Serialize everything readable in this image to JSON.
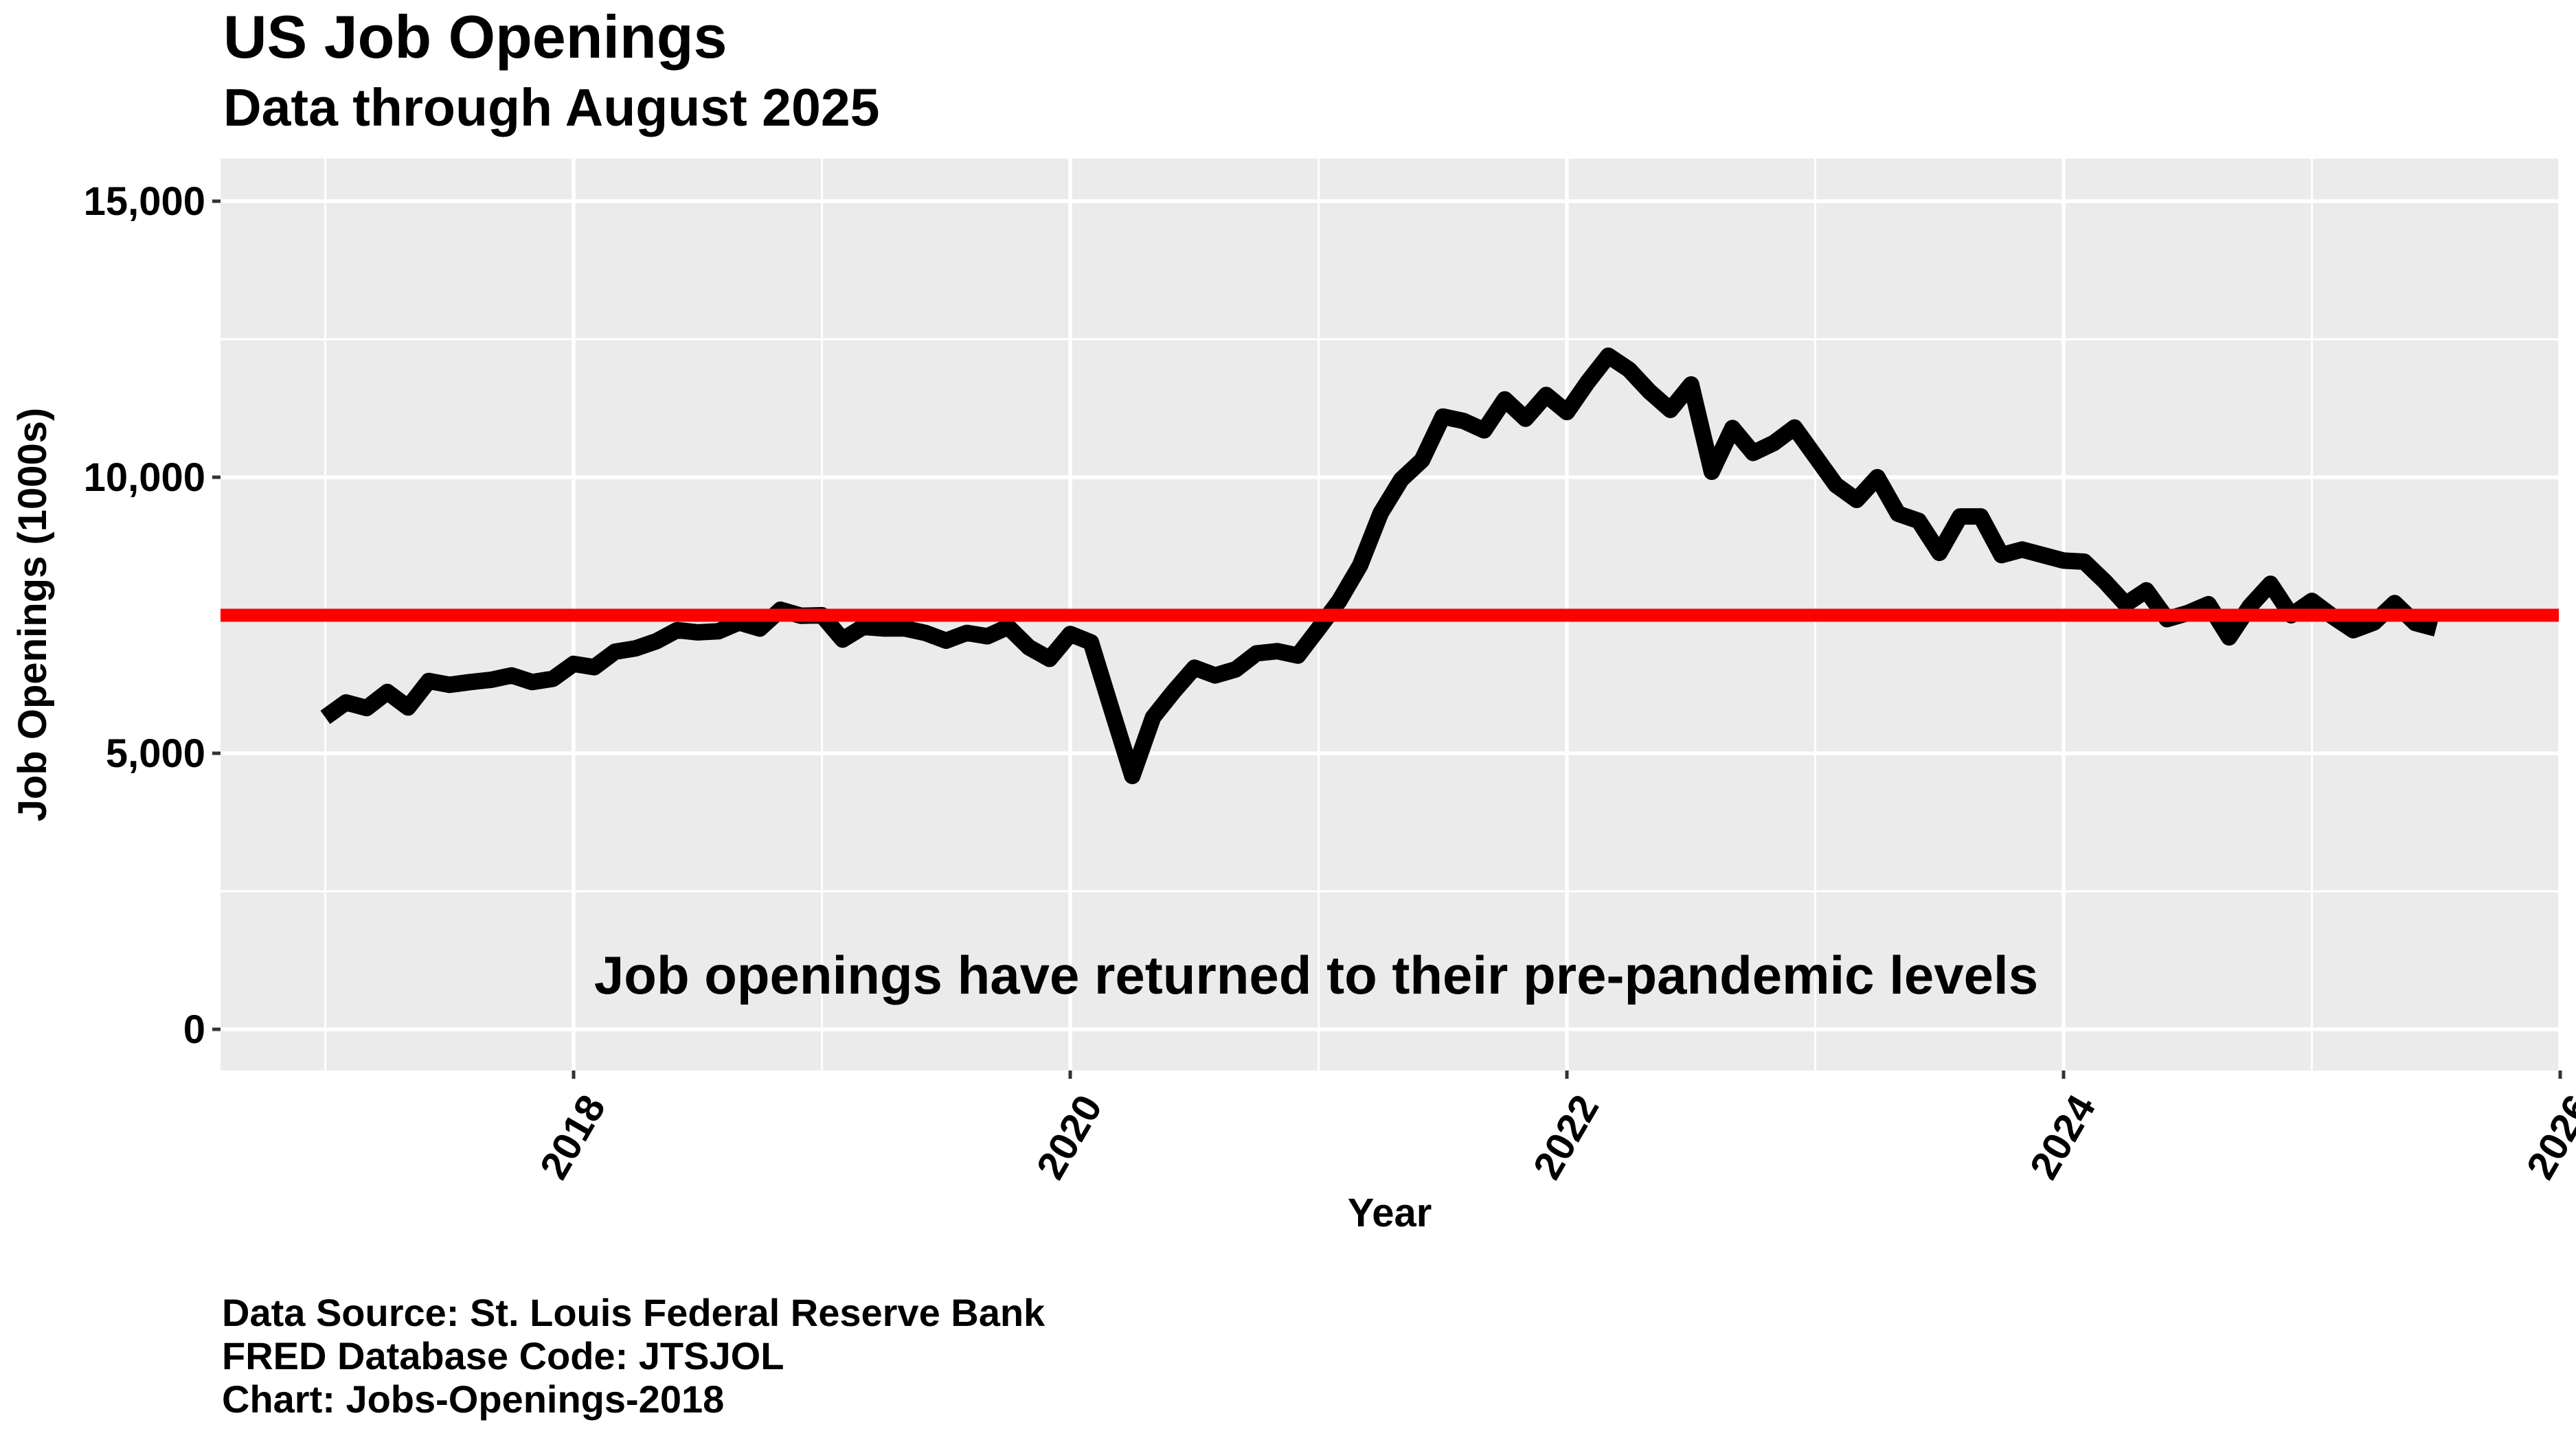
{
  "header": {
    "title": "US Job Openings",
    "subtitle": "Data through August 2025"
  },
  "caption": {
    "lines": [
      "Data Source: St. Louis Federal Reserve Bank",
      "FRED Database Code: JTSJOL",
      "Chart: Jobs-Openings-2018"
    ]
  },
  "colors": {
    "panel_background": "#EBEBEB",
    "gridline": "#FFFFFF",
    "series_line": "#000000",
    "reference_line": "#FF0000",
    "tick": "#333333"
  },
  "chart_data": {
    "type": "line",
    "title": "US Job Openings",
    "subtitle": "Data through August 2025",
    "xlabel": "Year",
    "ylabel": "Job Openings (1000s)",
    "annotation": "Job openings have returned to their pre-pandemic levels",
    "x_ticks": [
      2018,
      2020,
      2022,
      2024,
      2026
    ],
    "x_tick_labels": [
      "2018",
      "2020",
      "2022",
      "2024",
      "2026"
    ],
    "y_ticks": [
      0,
      5000,
      10000,
      15000
    ],
    "y_tick_labels": [
      "0",
      "5,000",
      "10,000",
      "15,000"
    ],
    "xlim": [
      2016.58,
      2026.0
    ],
    "ylim": [
      -700,
      15800
    ],
    "grid": true,
    "legend": "none",
    "reference_line": {
      "value": 7500,
      "color": "#FF0000",
      "orientation": "horizontal"
    },
    "series": [
      {
        "name": "Job Openings (JTSJOL)",
        "start": "2017-01",
        "frequency": "monthly",
        "x": [
          "2017-01",
          "2017-02",
          "2017-03",
          "2017-04",
          "2017-05",
          "2017-06",
          "2017-07",
          "2017-08",
          "2017-09",
          "2017-10",
          "2017-11",
          "2017-12",
          "2018-01",
          "2018-02",
          "2018-03",
          "2018-04",
          "2018-05",
          "2018-06",
          "2018-07",
          "2018-08",
          "2018-09",
          "2018-10",
          "2018-11",
          "2018-12",
          "2019-01",
          "2019-02",
          "2019-03",
          "2019-04",
          "2019-05",
          "2019-06",
          "2019-07",
          "2019-08",
          "2019-09",
          "2019-10",
          "2019-11",
          "2019-12",
          "2020-01",
          "2020-02",
          "2020-03",
          "2020-04",
          "2020-05",
          "2020-06",
          "2020-07",
          "2020-08",
          "2020-09",
          "2020-10",
          "2020-11",
          "2020-12",
          "2021-01",
          "2021-02",
          "2021-03",
          "2021-04",
          "2021-05",
          "2021-06",
          "2021-07",
          "2021-08",
          "2021-09",
          "2021-10",
          "2021-11",
          "2021-12",
          "2022-01",
          "2022-02",
          "2022-03",
          "2022-04",
          "2022-05",
          "2022-06",
          "2022-07",
          "2022-08",
          "2022-09",
          "2022-10",
          "2022-11",
          "2022-12",
          "2023-01",
          "2023-02",
          "2023-03",
          "2023-04",
          "2023-05",
          "2023-06",
          "2023-07",
          "2023-08",
          "2023-09",
          "2023-10",
          "2023-11",
          "2023-12",
          "2024-01",
          "2024-02",
          "2024-03",
          "2024-04",
          "2024-05",
          "2024-06",
          "2024-07",
          "2024-08",
          "2024-09",
          "2024-10",
          "2024-11",
          "2024-12",
          "2025-01",
          "2025-02",
          "2025-03",
          "2025-04",
          "2025-05",
          "2025-06",
          "2025-07"
        ],
        "values": [
          5650,
          5920,
          5820,
          6110,
          5830,
          6310,
          6240,
          6290,
          6330,
          6410,
          6290,
          6350,
          6620,
          6560,
          6840,
          6900,
          7030,
          7230,
          7190,
          7210,
          7370,
          7260,
          7600,
          7490,
          7500,
          7060,
          7290,
          7260,
          7260,
          7180,
          7040,
          7180,
          7120,
          7290,
          6920,
          6710,
          7160,
          7010,
          5790,
          4590,
          5650,
          6120,
          6550,
          6410,
          6520,
          6810,
          6850,
          6770,
          7260,
          7760,
          8400,
          9350,
          9960,
          10310,
          11100,
          11020,
          10850,
          11410,
          11060,
          11490,
          11180,
          11720,
          12200,
          11950,
          11550,
          11220,
          11680,
          10100,
          10890,
          10440,
          10620,
          10900,
          10380,
          9860,
          9590,
          10000,
          9340,
          9210,
          8630,
          9290,
          9290,
          8590,
          8690,
          8590,
          8490,
          8470,
          8110,
          7700,
          7950,
          7430,
          7540,
          7700,
          7100,
          7660,
          8070,
          7500,
          7760,
          7480,
          7230,
          7370,
          7720,
          7360,
          7260
        ]
      }
    ]
  }
}
